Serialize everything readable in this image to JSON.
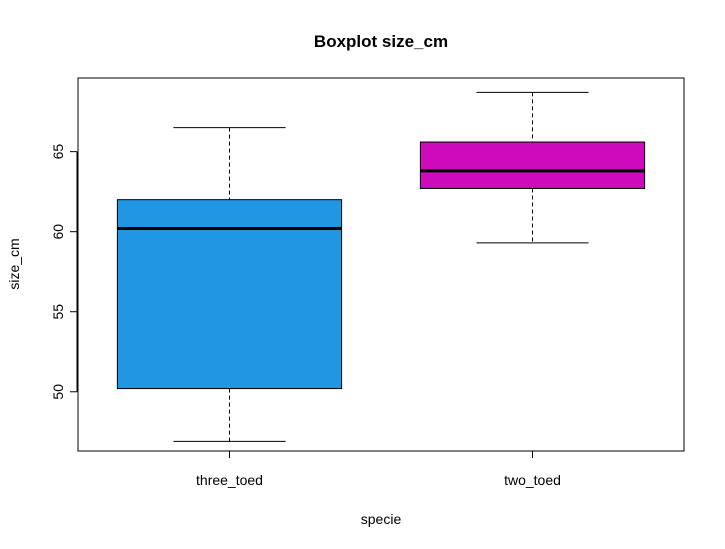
{
  "chart_data": {
    "type": "boxplot",
    "title": "Boxplot size_cm",
    "xlabel": "specie",
    "ylabel": "size_cm",
    "categories": [
      "three_toed",
      "two_toed"
    ],
    "boxes": [
      {
        "category": "three_toed",
        "min": 46.9,
        "q1": 50.2,
        "median": 60.2,
        "q3": 62.0,
        "max": 66.5,
        "color": "#2196E3"
      },
      {
        "category": "two_toed",
        "min": 59.3,
        "q1": 62.7,
        "median": 63.8,
        "q3": 65.6,
        "max": 68.7,
        "color": "#CC0CBC"
      }
    ],
    "yticks": [
      "50",
      "55",
      "60",
      "65"
    ],
    "ylim": [
      46.3,
      69.6
    ],
    "grid": false,
    "legend": "none"
  }
}
